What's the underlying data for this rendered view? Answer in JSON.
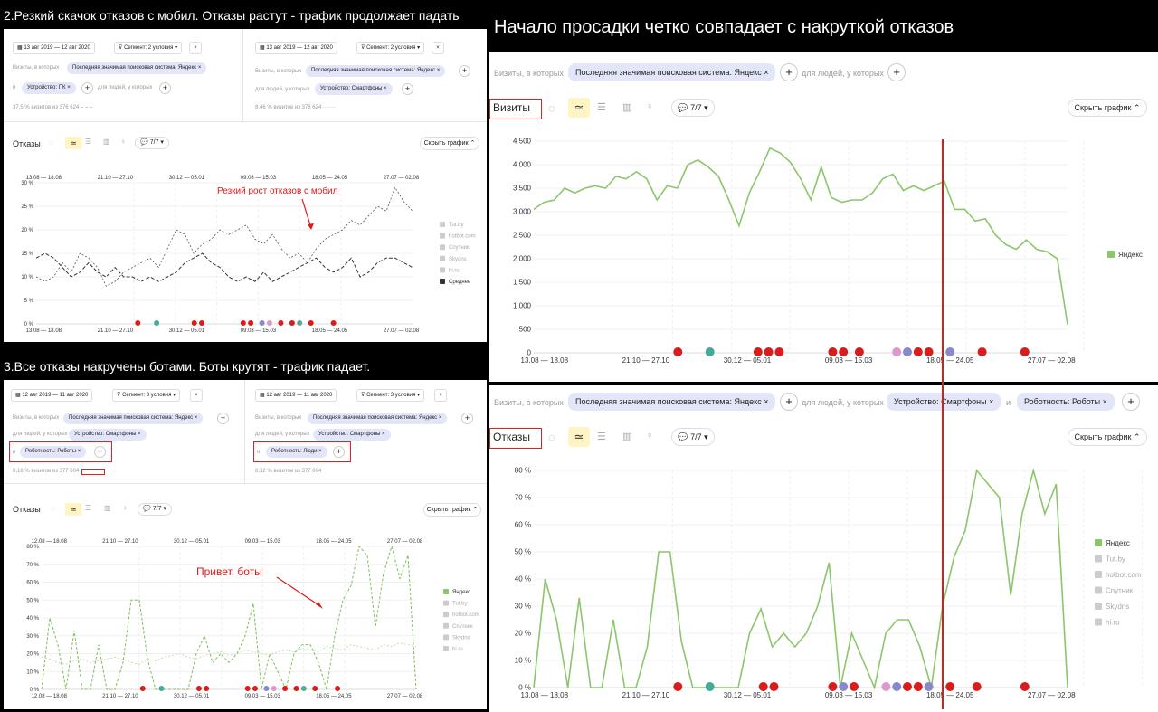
{
  "headers": {
    "p1": "2.Резкий скачок отказов с мобил. Отказы растут - трафик продолжает падать",
    "p2": "3.Все отказы накручены ботами. Боты крутят - трафик падает.",
    "p3": "Начало просадки четко совпадает с накруткой отказов"
  },
  "p1": {
    "date1": "13 авг 2019 — 12 авг 2020",
    "seg1": "Сегмент: 2 условия",
    "date2": "13 авг 2019 — 12 авг 2020",
    "seg2": "Сегмент: 2 условия",
    "visits_label": "Визиты, в которых",
    "chip_yandex": "Последняя значимая поисковая система: Яндекс",
    "and": "и",
    "chip_pc": "Устройство: ПК",
    "people_label": "для людей, у которых",
    "chip_phone": "Устройство: Смартфоны",
    "stat1": "37,5 % визитов из 376 624",
    "stat2": "8,46 % визитов из 376 624",
    "title": "Отказы",
    "count": "7/7",
    "hide": "Скрыть график",
    "annotation": "Резкий рост отказов с мобил",
    "legend": [
      "Tut.by",
      "hotbot.com",
      "Спутник",
      "Skydns",
      "hi.ru",
      "Среднее"
    ],
    "period_labels": [
      "13.08 — 18.08",
      "21.10 — 27.10",
      "30.12 — 05.01",
      "09.03 — 15.03",
      "18.05 — 24.05",
      "27.07 — 02.08"
    ]
  },
  "p2": {
    "date1": "12 авг 2019 — 11 авг 2020",
    "seg1": "Сегмент: 3 условия",
    "date2": "12 авг 2019 — 11 авг 2020",
    "seg2": "Сегмент: 3 условия",
    "visits_label": "Визиты, в которых",
    "chip_yandex": "Последняя значимая поисковая система: Яндекс",
    "people_label": "для людей, у которых",
    "chip_phone": "Устройство: Смартфоны",
    "and": "и",
    "chip_robots": "Роботность: Роботы",
    "chip_people": "Роботность: Люди",
    "stat1": "0,16 % визитов из 377 604",
    "stat2": "8,32 % визитов из 377 604",
    "title": "Отказы",
    "count": "7/7",
    "hide": "Скрыть график",
    "annotation": "Привет, боты",
    "legend": [
      "Яндекс",
      "Tut.by",
      "hotbot.com",
      "Спутник",
      "Skydns",
      "hi.ru"
    ],
    "period_labels": [
      "12.08 — 18.08",
      "21.10 — 27.10",
      "30.12 — 05.01",
      "09.03 — 15.03",
      "18.05 — 24.05",
      "27.07 — 02.08"
    ]
  },
  "p3": {
    "visits_label": "Визиты, в которых",
    "chip_yandex": "Последняя значимая поисковая система: Яндекс",
    "people_label": "для людей, у которых",
    "chip_phone": "Устройство: Смартфоны",
    "chip_robots": "Роботность: Роботы",
    "title_visits": "Визиты",
    "title_bounces": "Отказы",
    "count": "7/7",
    "hide": "Скрыть график",
    "legend_top": [
      "Яндекс"
    ],
    "legend_bottom": [
      "Яндекс",
      "Tut.by",
      "hotbot.com",
      "Спутник",
      "Skydns",
      "hi.ru"
    ],
    "period_labels": [
      "13.08 — 18.08",
      "21.10 — 27.10",
      "30.12 — 05.01",
      "09.03 — 15.03",
      "18.05 — 24.05",
      "27.07 — 02.08"
    ]
  },
  "colors": {
    "green": "#8cc66a",
    "dark": "#333333",
    "red": "#d91c1c",
    "chip": "#e3e6f8"
  },
  "chart_data": [
    {
      "type": "line",
      "title": "Отказы",
      "ylim": [
        0,
        30
      ],
      "yticks": [
        "0 %",
        "5 %",
        "10 %",
        "15 %",
        "20 %",
        "25 %",
        "30 %"
      ],
      "series": [
        {
          "name": "Среднее",
          "values": [
            14,
            15,
            14,
            12,
            10,
            11,
            13,
            11,
            10,
            12,
            10,
            10,
            9,
            10,
            9,
            10,
            11,
            13,
            14,
            15,
            13,
            12,
            10,
            9,
            10,
            9,
            11,
            9,
            10,
            11,
            12,
            13,
            14,
            12,
            11,
            12,
            14,
            10,
            11,
            13,
            14,
            14,
            13,
            12
          ]
        },
        {
          "values": [
            10,
            9,
            10,
            13,
            11,
            15,
            14,
            12,
            8,
            9,
            11,
            12,
            13,
            14,
            12,
            16,
            20,
            19,
            15,
            17,
            18,
            20,
            19,
            20,
            21,
            18,
            17,
            19,
            16,
            14,
            15,
            13,
            16,
            18,
            19,
            20,
            22,
            21,
            23,
            25,
            24,
            29,
            26,
            24
          ]
        }
      ]
    },
    {
      "type": "line",
      "title": "Отказы",
      "ylim": [
        0,
        80
      ],
      "yticks": [
        "0 %",
        "10 %",
        "20 %",
        "30 %",
        "40 %",
        "50 %",
        "60 %",
        "70 %",
        "80 %"
      ],
      "series": [
        {
          "name": "Яндекс",
          "values": [
            0,
            40,
            25,
            0,
            33,
            0,
            0,
            25,
            0,
            0,
            15,
            50,
            50,
            17,
            0,
            0,
            0,
            0,
            0,
            20,
            30,
            15,
            20,
            15,
            20,
            30,
            48,
            0,
            20,
            10,
            0,
            20,
            25,
            25,
            15,
            0,
            30,
            50,
            58,
            80,
            75,
            35,
            65,
            80,
            62,
            75,
            0
          ]
        },
        {
          "values": [
            18,
            17,
            15,
            14,
            16,
            17,
            15,
            16,
            17,
            18,
            17,
            15,
            14,
            17,
            16,
            18,
            19,
            20,
            18,
            17,
            19,
            20,
            21,
            19,
            20,
            22,
            21,
            20,
            19,
            21,
            22,
            21,
            23,
            22,
            21,
            24,
            23,
            22,
            25,
            24,
            23,
            22,
            25,
            24,
            26,
            25,
            24
          ]
        }
      ]
    },
    {
      "type": "line",
      "title": "Визиты",
      "ylim": [
        0,
        4500
      ],
      "yticks": [
        "0",
        "500",
        "1 000",
        "1 500",
        "2 000",
        "2 500",
        "3 000",
        "3 500",
        "4 000",
        "4 500"
      ],
      "series": [
        {
          "name": "Яндекс",
          "values": [
            3050,
            3200,
            3250,
            3500,
            3400,
            3500,
            3550,
            3500,
            3750,
            3700,
            3850,
            3700,
            3250,
            3550,
            3500,
            4000,
            4100,
            3950,
            3750,
            3250,
            2700,
            3400,
            3850,
            4350,
            4250,
            4050,
            3700,
            3250,
            3950,
            3300,
            3200,
            3250,
            3250,
            3400,
            3700,
            3800,
            3450,
            3550,
            3450,
            3550,
            3650,
            3050,
            3050,
            2800,
            2850,
            2500,
            2300,
            2200,
            2400,
            2200,
            2150,
            2000,
            600
          ]
        }
      ]
    },
    {
      "type": "line",
      "title": "Отказы",
      "ylim": [
        0,
        80
      ],
      "yticks": [
        "0 %",
        "10 %",
        "20 %",
        "30 %",
        "40 %",
        "50 %",
        "60 %",
        "70 %",
        "80 %"
      ],
      "series": [
        {
          "name": "Яндекс",
          "values": [
            0,
            40,
            25,
            0,
            33,
            0,
            0,
            25,
            0,
            0,
            15,
            50,
            50,
            17,
            0,
            0,
            0,
            0,
            0,
            20,
            29,
            15,
            20,
            15,
            20,
            30,
            46,
            0,
            20,
            10,
            0,
            20,
            25,
            25,
            15,
            0,
            30,
            48,
            58,
            80,
            75,
            70,
            34,
            64,
            80,
            64,
            75,
            0
          ]
        }
      ]
    }
  ]
}
